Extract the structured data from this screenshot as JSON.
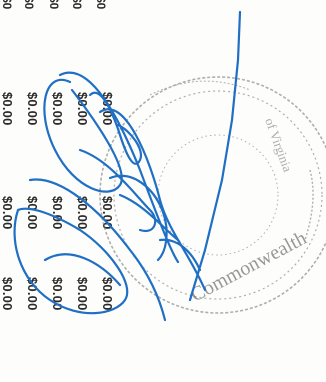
{
  "document": {
    "orientation": "rotated-90",
    "top_partial_values": [
      "$0",
      "$0",
      "$0",
      "$0",
      "$0"
    ],
    "column_right": [
      "$0.00",
      "$0.00",
      "$0.00",
      "$0.00",
      "$0.00"
    ],
    "column_middle": [
      "$0.00",
      "$0.00",
      "$0.00",
      "$0.00",
      "$0.00"
    ],
    "column_left": [
      "$0.00",
      "$0.00",
      "$0.00",
      "$0.00",
      "$0.00"
    ]
  },
  "stamp": {
    "type": "circular-seal",
    "text_fragment": "Commonwealth",
    "ink_color": "#6f6f6f"
  },
  "signature": {
    "ink_color": "#1f6fc4"
  }
}
